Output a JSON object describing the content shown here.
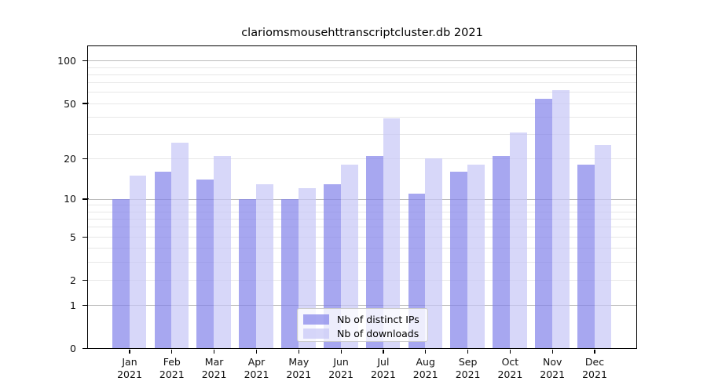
{
  "title": "clariomsmousehttranscriptcluster.db 2021",
  "colors": {
    "series": [
      "rgba(130,130,234,0.7)",
      "rgba(198,198,246,0.7)"
    ],
    "grid_major": "#bbbbbb",
    "grid_minor": "#e7e7e7",
    "spine": "#000000",
    "tick_label": "#111111",
    "legend_bg": "rgba(255,255,255,0.8)",
    "legend_border": "#cccccc"
  },
  "chart_data": {
    "type": "bar",
    "title": "clariomsmousehttranscriptcluster.db 2021",
    "categories": [
      "Jan 2021",
      "Feb 2021",
      "Mar 2021",
      "Apr 2021",
      "May 2021",
      "Jun 2021",
      "Jul 2021",
      "Aug 2021",
      "Sep 2021",
      "Oct 2021",
      "Nov 2021",
      "Dec 2021"
    ],
    "series": [
      {
        "name": "Nb of distinct IPs",
        "values": [
          10,
          16,
          14,
          10,
          10,
          13,
          21,
          11,
          16,
          21,
          54,
          18
        ]
      },
      {
        "name": "Nb of downloads",
        "values": [
          15,
          26,
          21,
          13,
          12,
          18,
          39,
          20,
          18,
          31,
          62,
          25
        ]
      }
    ],
    "xlabel": "",
    "ylabel": "",
    "yscale": "log10(1+x)",
    "ylim": [
      0,
      127
    ],
    "ytick_values": [
      0,
      1,
      2,
      5,
      10,
      20,
      50,
      100
    ],
    "grid_major_values": [
      1,
      10,
      100
    ],
    "grid_minor_values": [
      2,
      3,
      4,
      5,
      6,
      7,
      8,
      9,
      20,
      30,
      40,
      50,
      60,
      70,
      80,
      90
    ],
    "grid": true,
    "legend_position": "lower center"
  }
}
